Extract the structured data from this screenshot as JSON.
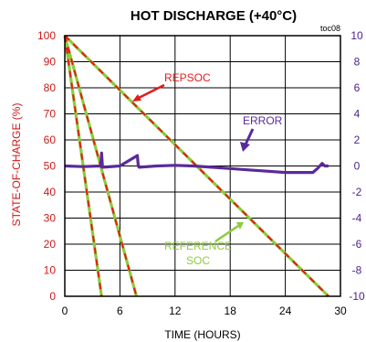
{
  "chart_data": {
    "type": "line",
    "title": "HOT DISCHARGE (+40°C)",
    "code": "toc08",
    "xlabel": "TIME (HOURS)",
    "ylabel_left": "STATE-OF-CHARGE (%)",
    "xlim": [
      0,
      30
    ],
    "ylim_left": [
      0,
      100
    ],
    "ylim_right": [
      -10,
      10
    ],
    "x_ticks": [
      "0",
      "6",
      "12",
      "18",
      "24",
      "30"
    ],
    "y_ticks_left": [
      "0",
      "10",
      "20",
      "30",
      "40",
      "50",
      "60",
      "70",
      "80",
      "90",
      "100"
    ],
    "y_ticks_right": [
      "-10",
      "-8",
      "-6",
      "-4",
      "-2",
      "0",
      "2",
      "4",
      "6",
      "8",
      "10"
    ],
    "grid": true,
    "colors": {
      "repsoc": "#e41b1b",
      "reference": "#8ccc3c",
      "error": "#5a2a9a",
      "leftAxis": "#d01818",
      "rightAxis": "#4b1f8a"
    },
    "annotations": {
      "repsoc": "REPSOC",
      "error": "ERROR",
      "reference_line1": "REFERENCE",
      "reference_line2": "SOC"
    },
    "series": [
      {
        "name": "REPSOC",
        "axis": "left",
        "segments": [
          {
            "x": [
              0,
              4
            ],
            "y": [
              100,
              0
            ]
          },
          {
            "x": [
              0,
              7.8
            ],
            "y": [
              100,
              0
            ]
          },
          {
            "x": [
              0,
              28.7
            ],
            "y": [
              100,
              0
            ]
          }
        ]
      },
      {
        "name": "REFERENCE SOC",
        "axis": "left",
        "segments": [
          {
            "x": [
              0,
              4
            ],
            "y": [
              100,
              0
            ]
          },
          {
            "x": [
              0,
              7.8
            ],
            "y": [
              100,
              0
            ]
          },
          {
            "x": [
              0,
              28.7
            ],
            "y": [
              100,
              0
            ]
          }
        ]
      },
      {
        "name": "ERROR",
        "axis": "right",
        "x": [
          0,
          2,
          3.9,
          4.0,
          4.1,
          6,
          7.9,
          8.0,
          8.1,
          10,
          12,
          14,
          16,
          18,
          20,
          22,
          24,
          26,
          27,
          27.5,
          28,
          28.3,
          28.7
        ],
        "y": [
          0,
          -0.05,
          0,
          1,
          -0.1,
          0,
          0.8,
          0,
          -0.1,
          0,
          0.05,
          0,
          -0.1,
          -0.2,
          -0.3,
          -0.4,
          -0.5,
          -0.5,
          -0.5,
          -0.2,
          0.2,
          0,
          0
        ]
      }
    ]
  }
}
